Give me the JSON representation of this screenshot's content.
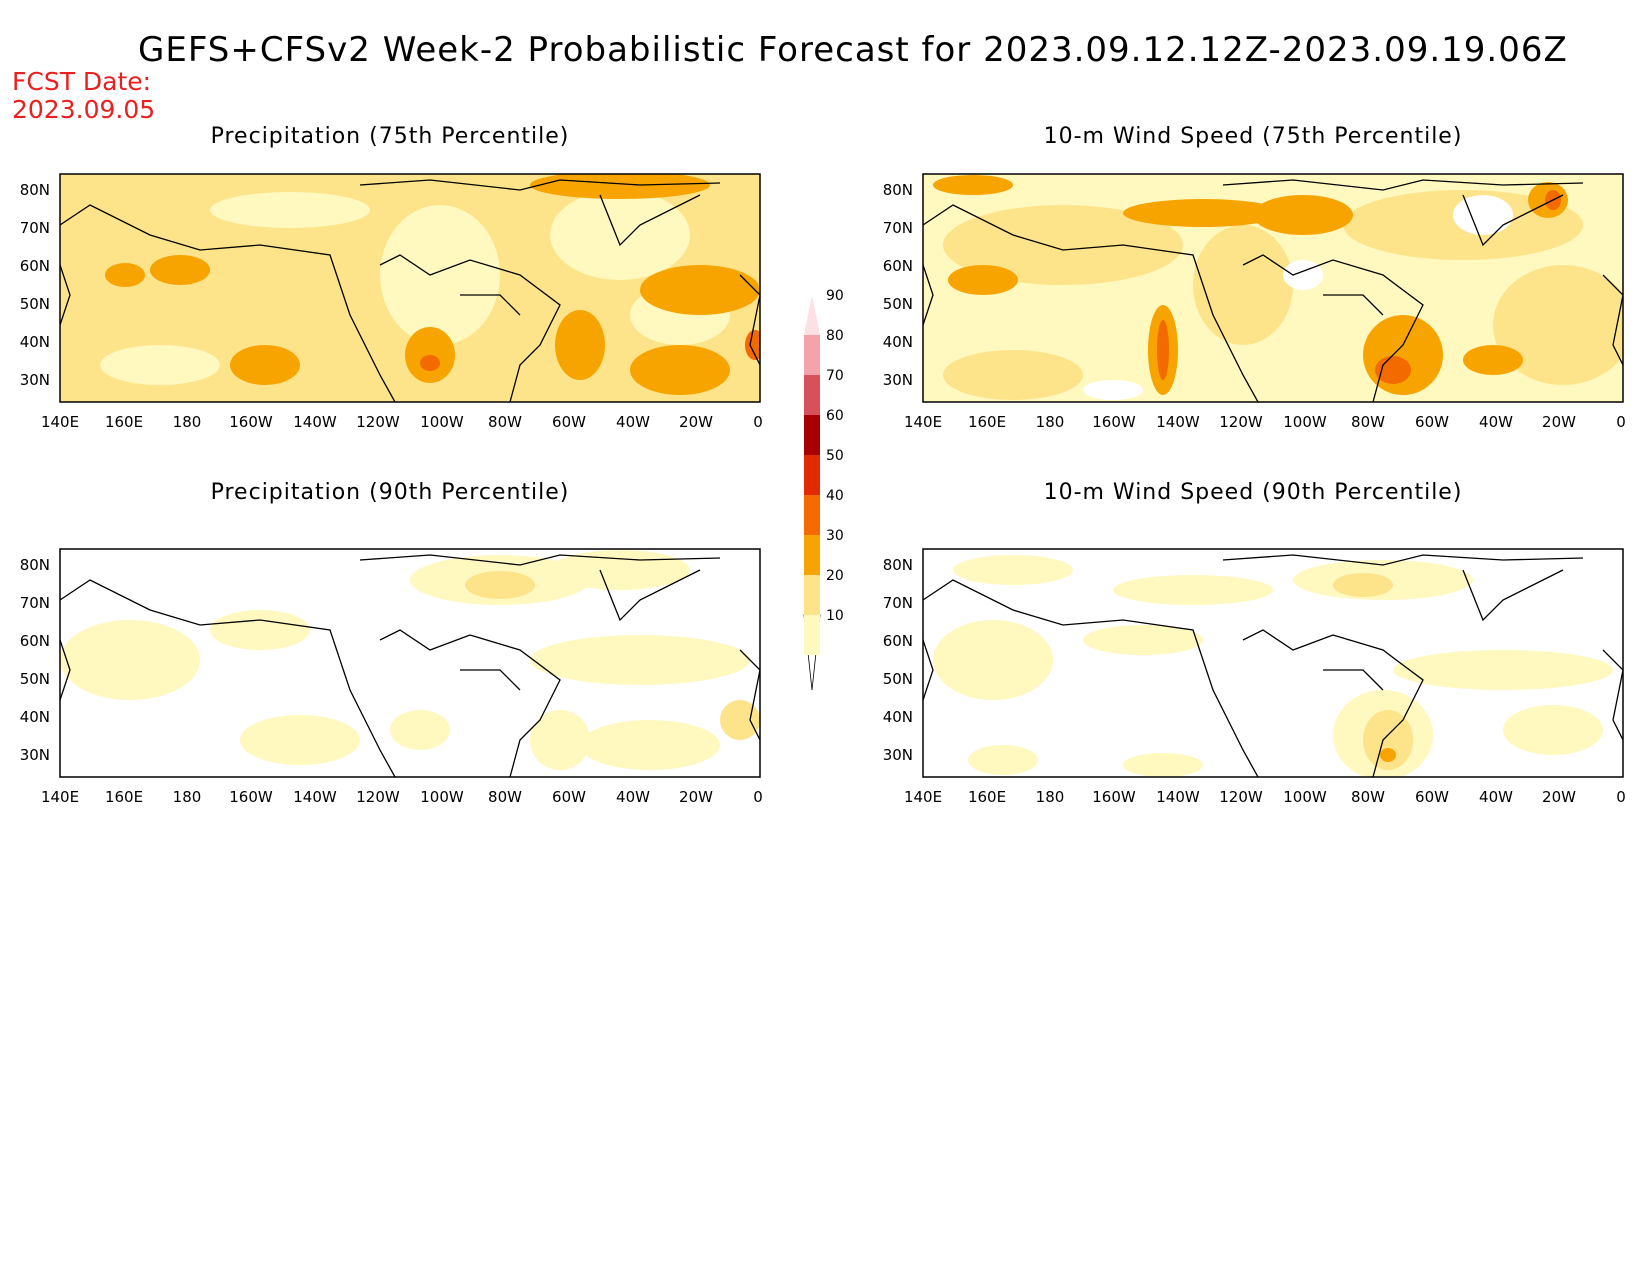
{
  "header": {
    "title": "GEFS+CFSv2 Week-2 Probabilistic Forecast for 2023.09.12.12Z-2023.09.19.06Z",
    "fcst_label": "FCST Date:",
    "fcst_date": "2023.09.05"
  },
  "axes": {
    "lat_labels": [
      "80N",
      "70N",
      "60N",
      "50N",
      "40N",
      "30N"
    ],
    "lon_labels": [
      "140E",
      "160E",
      "180",
      "160W",
      "140W",
      "120W",
      "100W",
      "80W",
      "60W",
      "40W",
      "20W",
      "0"
    ]
  },
  "panels": [
    {
      "id": "precip-75",
      "title": "Precipitation (75th Percentile)"
    },
    {
      "id": "wind-75",
      "title": "10-m Wind Speed (75th Percentile)"
    },
    {
      "id": "precip-90",
      "title": "Precipitation (90th Percentile)"
    },
    {
      "id": "wind-90",
      "title": "10-m Wind Speed (90th Percentile)"
    }
  ],
  "colorbar": {
    "levels": [
      "10",
      "20",
      "30",
      "40",
      "50",
      "60",
      "70",
      "80",
      "90"
    ],
    "colors": [
      "#fff8bf",
      "#fde48a",
      "#f7a400",
      "#f26a00",
      "#e12a00",
      "#a80000",
      "#d8505a",
      "#f4a3ad",
      "#fde0e4"
    ]
  },
  "colors": {
    "title_text": "#000000",
    "fcst_text": "#e82020",
    "coastline": "#000000"
  }
}
